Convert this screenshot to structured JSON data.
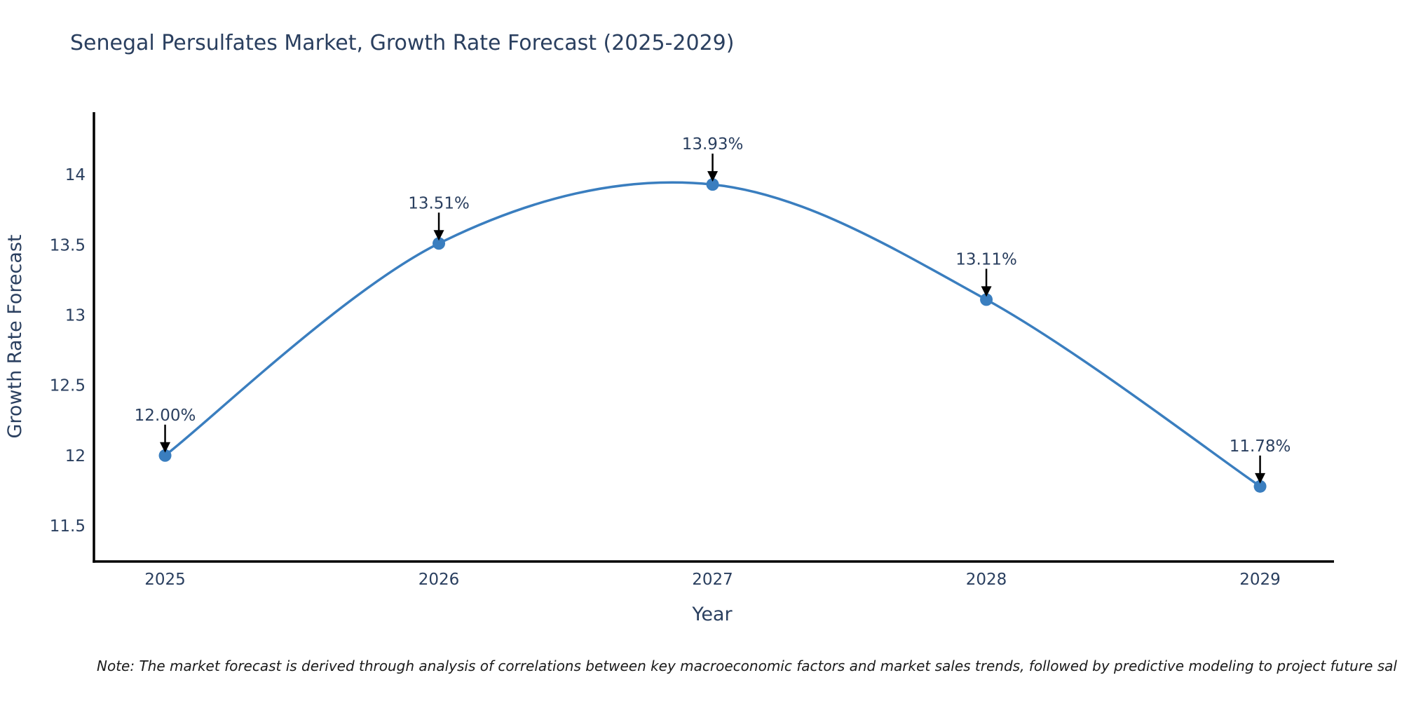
{
  "chart_data": {
    "type": "line",
    "title": "Senegal Persulfates Market, Growth Rate Forecast (2025-2029)",
    "xlabel": "Year",
    "ylabel": "Growth Rate Forecast",
    "x": [
      2025,
      2026,
      2027,
      2028,
      2029
    ],
    "y": [
      12.0,
      13.51,
      13.93,
      13.11,
      11.78
    ],
    "point_labels": [
      "12.00%",
      "13.51%",
      "13.93%",
      "13.11%",
      "11.78%"
    ],
    "xtick_labels": [
      "2025",
      "2026",
      "2027",
      "2028",
      "2029"
    ],
    "yticks": [
      11.5,
      12,
      12.5,
      13,
      13.5,
      14
    ],
    "ytick_labels": [
      "11.5",
      "12",
      "12.5",
      "13",
      "13.5",
      "14"
    ],
    "xlim": [
      2024.74,
      2029.27
    ],
    "ylim": [
      11.245,
      14.445
    ],
    "grid": false,
    "legend_position": "none",
    "marker_size": 9,
    "line_width": 3.5,
    "colors": {
      "line": "#3a7ebf",
      "marker": "#3a7ebf",
      "axis": "#000000",
      "text": "#2a3f5f",
      "tick_text": "#2a3f5f",
      "arrow": "#000000",
      "note_text": "#1a1a1a",
      "background": "#ffffff"
    },
    "note": "Note: The market forecast is derived through analysis of correlations between key macroeconomic factors and market sales trends, followed by predictive modeling to project future sal"
  }
}
